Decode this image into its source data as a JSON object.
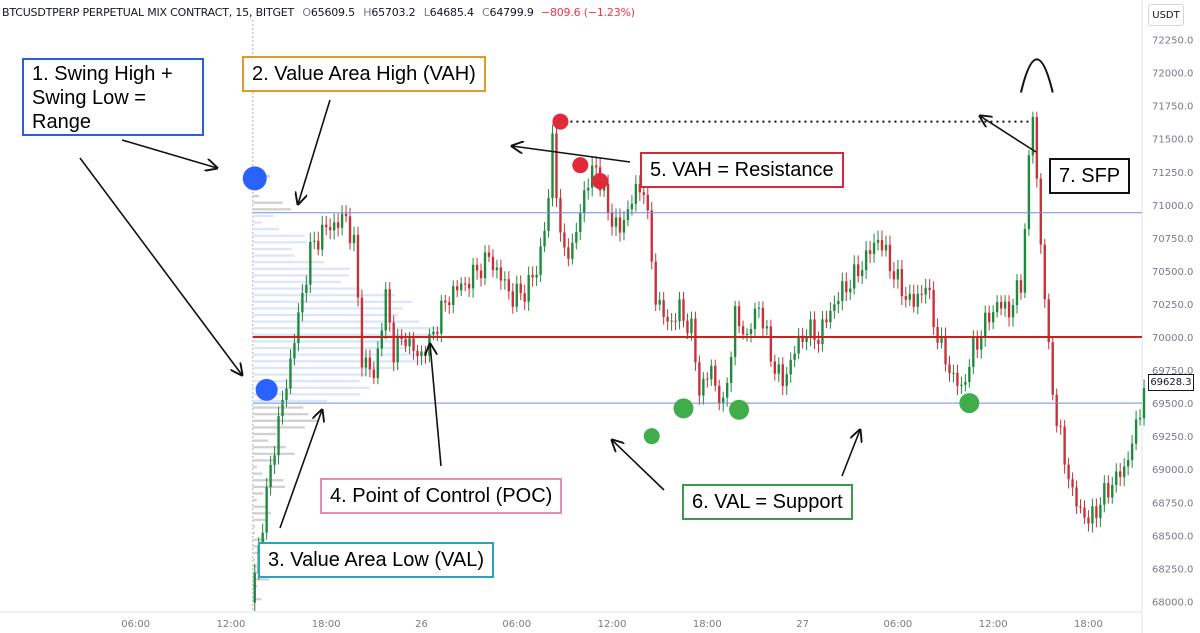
{
  "header": {
    "symbol": "BTCUSDTPERP PERPETUAL MIX CONTRACT, 15, BITGET",
    "open_label": "O",
    "open": "65609.5",
    "high_label": "H",
    "high": "65703.2",
    "low_label": "L",
    "low": "64685.4",
    "close_label": "C",
    "close": "64799.9",
    "change": "−809.6 (−1.23%)"
  },
  "currency": "USDT",
  "last_price_label": "69628.3",
  "colors": {
    "up": "#1e8a3c",
    "down": "#c8303a",
    "vah_val_line": "#6f8fd8",
    "poc_line": "#cc1f1f",
    "dot_blue": "#2962ff",
    "dot_red": "#e02a3a",
    "dot_green": "#3fae4a",
    "profile_value_area": "#dbe6fb",
    "profile_outside": "#c9c9c9",
    "box_blue": "#2a5fd6",
    "box_orange": "#e09a2a",
    "box_cyan": "#27a6b8",
    "box_pink": "#e58cb0",
    "box_red": "#d12b3b",
    "box_green": "#3c9a4a",
    "box_black": "#111111"
  },
  "annotations": {
    "swing_range": [
      "1. Swing High +",
      "Swing Low =",
      "Range"
    ],
    "vah": "2. Value Area High (VAH)",
    "val": "3. Value Area Low (VAL)",
    "poc": "4. Point of Control (POC)",
    "vah_resistance": "5. VAH = Resistance",
    "val_support": "6. VAL = Support",
    "sfp": "7. SFP"
  },
  "chart_data": {
    "type": "candlestick",
    "y_axis": {
      "range": [
        67950,
        72300
      ],
      "ticks": [
        68000,
        68250,
        68500,
        68750,
        69000,
        69250,
        69500,
        69750,
        70000,
        70250,
        70500,
        70750,
        71000,
        71250,
        71500,
        71750,
        72000,
        72250
      ],
      "tick_labels": [
        "68000.0",
        "68250.0",
        "68500.0",
        "68750.0",
        "69000.0",
        "69250.0",
        "69500.0",
        "69750.0",
        "70000.0",
        "70250.0",
        "70500.0",
        "70750.0",
        "71000.0",
        "71250.0",
        "71500.0",
        "71750.0",
        "72000.0",
        "72250.0"
      ]
    },
    "x_axis": {
      "ticks": [
        {
          "label": "06:00",
          "i": 0
        },
        {
          "label": "12:00",
          "i": 24
        },
        {
          "label": "18:00",
          "i": 48
        },
        {
          "label": "26",
          "i": 72
        },
        {
          "label": "06:00",
          "i": 96
        },
        {
          "label": "12:00",
          "i": 120
        },
        {
          "label": "18:00",
          "i": 144
        },
        {
          "label": "27",
          "i": 168
        },
        {
          "label": "06:00",
          "i": 192
        },
        {
          "label": "12:00",
          "i": 216
        },
        {
          "label": "18:00",
          "i": 240
        }
      ],
      "range_index": [
        -12,
        255
      ]
    },
    "levels": {
      "vah": 70940,
      "poc": 70000,
      "val": 69500
    },
    "close_points": [
      [
        29,
        67990
      ],
      [
        32,
        68600
      ],
      [
        35,
        69200
      ],
      [
        38,
        69650
      ],
      [
        41,
        70150
      ],
      [
        44,
        70650
      ],
      [
        47,
        70800
      ],
      [
        50,
        70850
      ],
      [
        53,
        70900
      ],
      [
        55,
        70700
      ],
      [
        57,
        69850
      ],
      [
        60,
        69700
      ],
      [
        63,
        70300
      ],
      [
        65,
        69900
      ],
      [
        68,
        70000
      ],
      [
        71,
        69850
      ],
      [
        74,
        69950
      ],
      [
        77,
        70200
      ],
      [
        80,
        70350
      ],
      [
        83,
        70400
      ],
      [
        86,
        70500
      ],
      [
        89,
        70600
      ],
      [
        92,
        70450
      ],
      [
        95,
        70300
      ],
      [
        98,
        70350
      ],
      [
        101,
        70500
      ],
      [
        104,
        71000
      ],
      [
        105,
        71550
      ],
      [
        107,
        70700
      ],
      [
        110,
        70650
      ],
      [
        113,
        71100
      ],
      [
        116,
        71300
      ],
      [
        119,
        70950
      ],
      [
        122,
        70800
      ],
      [
        125,
        71050
      ],
      [
        128,
        71150
      ],
      [
        131,
        70300
      ],
      [
        134,
        70100
      ],
      [
        137,
        70200
      ],
      [
        140,
        70050
      ],
      [
        142,
        69600
      ],
      [
        145,
        69750
      ],
      [
        148,
        69450
      ],
      [
        151,
        70150
      ],
      [
        154,
        70000
      ],
      [
        157,
        70250
      ],
      [
        160,
        69850
      ],
      [
        163,
        69650
      ],
      [
        166,
        69900
      ],
      [
        169,
        70050
      ],
      [
        172,
        70000
      ],
      [
        175,
        70200
      ],
      [
        178,
        70350
      ],
      [
        181,
        70450
      ],
      [
        184,
        70600
      ],
      [
        187,
        70750
      ],
      [
        190,
        70550
      ],
      [
        193,
        70350
      ],
      [
        196,
        70250
      ],
      [
        199,
        70400
      ],
      [
        202,
        70000
      ],
      [
        205,
        69750
      ],
      [
        208,
        69600
      ],
      [
        211,
        69900
      ],
      [
        214,
        70100
      ],
      [
        217,
        70250
      ],
      [
        220,
        70200
      ],
      [
        223,
        70400
      ],
      [
        225,
        71300
      ],
      [
        226,
        71700
      ],
      [
        228,
        70700
      ],
      [
        230,
        69900
      ],
      [
        232,
        69350
      ],
      [
        234,
        69100
      ],
      [
        236,
        68800
      ],
      [
        238,
        68700
      ],
      [
        240,
        68600
      ],
      [
        243,
        68750
      ],
      [
        246,
        68900
      ],
      [
        249,
        69000
      ],
      [
        252,
        69300
      ],
      [
        254,
        69628
      ]
    ],
    "profile_peak_price": 70000,
    "swing_high": 71200,
    "swing_low": 69600,
    "markers": {
      "red": [
        [
          107,
          71630
        ],
        [
          112,
          71300
        ],
        [
          117,
          71180
        ]
      ],
      "green": [
        [
          130,
          69250
        ],
        [
          138,
          69460
        ],
        [
          152,
          69450
        ],
        [
          210,
          69500
        ]
      ]
    }
  }
}
